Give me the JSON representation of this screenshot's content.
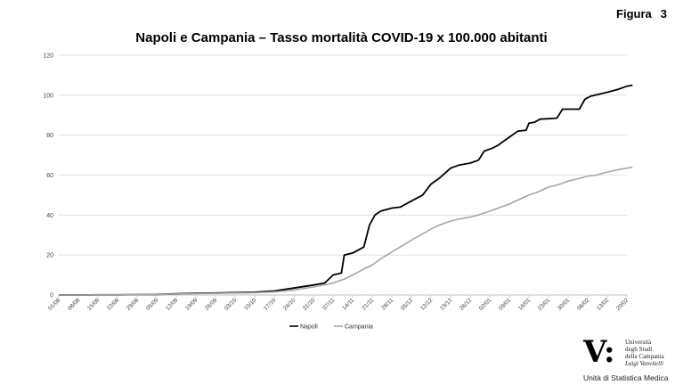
{
  "figure": {
    "label": "Figura",
    "number": "3"
  },
  "chart_data": {
    "type": "line",
    "title": "Napoli e Campania – Tasso mortalità COVID-19 x 100.000 abitanti",
    "xlabel": "",
    "ylabel": "",
    "ylim": [
      0,
      120
    ],
    "yticks": [
      0,
      20,
      40,
      60,
      80,
      100,
      120
    ],
    "grid": true,
    "legend_position": "bottom-center",
    "x_tick_labels": [
      "01/08",
      "08/08",
      "15/08",
      "22/08",
      "29/08",
      "05/09",
      "12/09",
      "19/09",
      "26/09",
      "03/10",
      "10/10",
      "17/10",
      "24/10",
      "31/10",
      "07/11",
      "14/11",
      "21/11",
      "28/11",
      "05/12",
      "12/12",
      "19/12",
      "26/12",
      "02/01",
      "09/01",
      "16/01",
      "23/01",
      "30/01",
      "06/02",
      "13/02",
      "20/02"
    ],
    "series": [
      {
        "name": "Napoli",
        "color": "#000000",
        "points": [
          [
            "01/08",
            0
          ],
          [
            "08/08",
            0
          ],
          [
            "15/08",
            0.1
          ],
          [
            "22/08",
            0.1
          ],
          [
            "29/08",
            0.2
          ],
          [
            "05/09",
            0.3
          ],
          [
            "12/09",
            0.6
          ],
          [
            "19/09",
            0.9
          ],
          [
            "26/09",
            1.0
          ],
          [
            "03/10",
            1.2
          ],
          [
            "10/10",
            1.4
          ],
          [
            "17/10",
            2.0
          ],
          [
            "24/10",
            3.5
          ],
          [
            "31/10",
            5.0
          ],
          [
            "04/11",
            6.0
          ],
          [
            "07/11",
            10.0
          ],
          [
            "10/11",
            11.0
          ],
          [
            "11/11",
            20.0
          ],
          [
            "14/11",
            21.0
          ],
          [
            "18/11",
            24.0
          ],
          [
            "20/11",
            35.0
          ],
          [
            "22/11",
            40.0
          ],
          [
            "24/11",
            42.0
          ],
          [
            "28/11",
            43.5
          ],
          [
            "01/12",
            44.0
          ],
          [
            "05/12",
            47.0
          ],
          [
            "09/12",
            50.0
          ],
          [
            "12/12",
            55.5
          ],
          [
            "15/12",
            58.5
          ],
          [
            "19/12",
            63.5
          ],
          [
            "22/12",
            65.0
          ],
          [
            "26/12",
            66.0
          ],
          [
            "29/12",
            67.5
          ],
          [
            "31/12",
            72.0
          ],
          [
            "03/01",
            73.5
          ],
          [
            "05/01",
            75.0
          ],
          [
            "09/01",
            79.0
          ],
          [
            "12/01",
            82.0
          ],
          [
            "15/01",
            82.5
          ],
          [
            "16/01",
            86.0
          ],
          [
            "18/01",
            86.5
          ],
          [
            "20/01",
            88.0
          ],
          [
            "26/01",
            88.5
          ],
          [
            "28/01",
            93.0
          ],
          [
            "03/02",
            93.0
          ],
          [
            "05/02",
            98.0
          ],
          [
            "07/02",
            99.5
          ],
          [
            "13/02",
            101.5
          ],
          [
            "17/02",
            103.0
          ],
          [
            "20/02",
            104.5
          ],
          [
            "22/02",
            105.0
          ]
        ]
      },
      {
        "name": "Campania",
        "color": "#a6a6a6",
        "points": [
          [
            "01/08",
            0
          ],
          [
            "08/08",
            0
          ],
          [
            "15/08",
            0.1
          ],
          [
            "22/08",
            0.1
          ],
          [
            "29/08",
            0.2
          ],
          [
            "05/09",
            0.3
          ],
          [
            "12/09",
            0.5
          ],
          [
            "19/09",
            0.7
          ],
          [
            "26/09",
            0.8
          ],
          [
            "03/10",
            1.0
          ],
          [
            "10/10",
            1.1
          ],
          [
            "17/10",
            1.5
          ],
          [
            "24/10",
            2.5
          ],
          [
            "31/10",
            4.0
          ],
          [
            "07/11",
            6.0
          ],
          [
            "11/11",
            8.0
          ],
          [
            "14/11",
            10.0
          ],
          [
            "18/11",
            13.0
          ],
          [
            "21/11",
            15.0
          ],
          [
            "25/11",
            19.0
          ],
          [
            "28/11",
            21.5
          ],
          [
            "01/12",
            24.0
          ],
          [
            "05/12",
            27.5
          ],
          [
            "09/12",
            30.5
          ],
          [
            "12/12",
            33.0
          ],
          [
            "15/12",
            35.0
          ],
          [
            "19/12",
            37.0
          ],
          [
            "22/12",
            38.0
          ],
          [
            "26/12",
            39.0
          ],
          [
            "29/12",
            40.0
          ],
          [
            "02/01",
            42.0
          ],
          [
            "05/01",
            43.5
          ],
          [
            "09/01",
            45.5
          ],
          [
            "12/01",
            47.5
          ],
          [
            "16/01",
            50.0
          ],
          [
            "19/01",
            51.5
          ],
          [
            "23/01",
            54.0
          ],
          [
            "26/01",
            55.0
          ],
          [
            "30/01",
            57.0
          ],
          [
            "02/02",
            58.0
          ],
          [
            "06/02",
            59.5
          ],
          [
            "09/02",
            60.0
          ],
          [
            "13/02",
            61.5
          ],
          [
            "16/02",
            62.5
          ],
          [
            "20/02",
            63.5
          ],
          [
            "22/02",
            64.0
          ]
        ]
      }
    ]
  },
  "logo": {
    "mark": "V:",
    "lines": [
      "Università",
      "degli Studi",
      "della Campania",
      "Luigi Vanvitelli"
    ],
    "unit": "Unità di Statistica Medica"
  }
}
